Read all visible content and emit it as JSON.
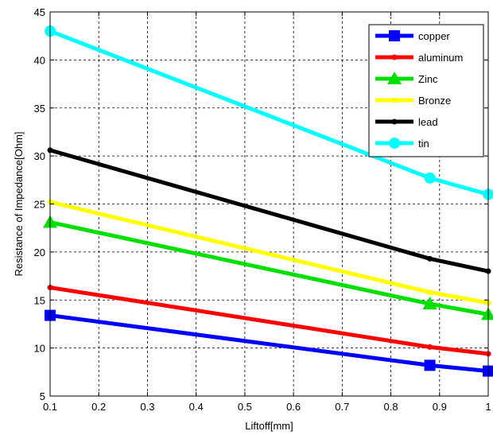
{
  "chart_data": {
    "type": "line",
    "xlabel": "Liftoff[mm]",
    "ylabel": "Resistance of Impedance[Ohm]",
    "xlim": [
      0.1,
      1.0
    ],
    "ylim": [
      5,
      45
    ],
    "xticks": [
      0.1,
      0.2,
      0.3,
      0.4,
      0.5,
      0.6,
      0.7,
      0.8,
      0.9,
      1.0
    ],
    "xtick_labels": [
      "0.1",
      "0.2",
      "0.3",
      "0.4",
      "0.5",
      "0.6",
      "0.7",
      "0.8",
      "0.9",
      "1"
    ],
    "yticks": [
      5,
      10,
      15,
      20,
      25,
      30,
      35,
      40,
      45
    ],
    "ytick_labels": [
      "5",
      "10",
      "15",
      "20",
      "25",
      "30",
      "35",
      "40",
      "45"
    ],
    "grid": true,
    "legend_position": "top-right",
    "x": [
      0.1,
      0.88,
      1.0
    ],
    "series": [
      {
        "name": "copper",
        "values": [
          13.4,
          8.2,
          7.6
        ],
        "color": "#0000ff",
        "marker": "square"
      },
      {
        "name": "aluminum",
        "values": [
          16.3,
          10.1,
          9.4
        ],
        "color": "#ff0000",
        "marker": "dot"
      },
      {
        "name": "Zinc",
        "values": [
          23.1,
          14.6,
          13.5
        ],
        "color": "#00e000",
        "marker": "triangle"
      },
      {
        "name": "Bronze",
        "values": [
          25.2,
          15.8,
          14.7
        ],
        "color": "#ffff00",
        "marker": "dot"
      },
      {
        "name": "lead",
        "values": [
          30.6,
          19.3,
          18.0
        ],
        "color": "#000000",
        "marker": "dot"
      },
      {
        "name": "tin",
        "values": [
          43.0,
          27.7,
          26.0
        ],
        "color": "#00ffff",
        "marker": "circle"
      }
    ]
  }
}
